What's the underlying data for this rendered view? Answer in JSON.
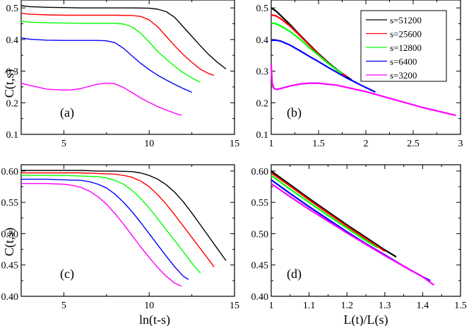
{
  "chart_data": [
    {
      "type": "line",
      "panel": "a",
      "panel_label": "(a)",
      "xlabel": "",
      "ylabel": "C(t,s)",
      "xlim": [
        2.5,
        15
      ],
      "ylim": [
        0.1,
        0.525
      ],
      "xticks": [
        5,
        10,
        15
      ],
      "xtick_labels": [
        "5",
        "10",
        "15"
      ],
      "yticks": [
        0.1,
        0.2,
        0.3,
        0.4,
        0.5
      ],
      "ytick_labels": [
        "0.1",
        "0.2",
        "0.3",
        "0.4",
        "0.5"
      ],
      "series": [
        {
          "name": "s=51200",
          "color": "#000000",
          "x": [
            2.5,
            3,
            4,
            5,
            6,
            7,
            8,
            9,
            10,
            10.5,
            11,
            11.5,
            12,
            12.5,
            13,
            13.5,
            14,
            14.5
          ],
          "y": [
            0.507,
            0.504,
            0.502,
            0.501,
            0.5,
            0.5,
            0.5,
            0.5,
            0.499,
            0.496,
            0.488,
            0.47,
            0.44,
            0.41,
            0.38,
            0.352,
            0.328,
            0.307
          ]
        },
        {
          "name": "s=25600",
          "color": "#ff0000",
          "x": [
            2.5,
            3,
            4,
            5,
            6,
            7,
            8,
            9,
            9.5,
            10,
            10.5,
            11,
            11.5,
            12,
            12.5,
            13,
            13.5,
            13.8
          ],
          "y": [
            0.483,
            0.48,
            0.478,
            0.477,
            0.477,
            0.477,
            0.477,
            0.476,
            0.473,
            0.462,
            0.44,
            0.41,
            0.38,
            0.352,
            0.328,
            0.306,
            0.292,
            0.287
          ]
        },
        {
          "name": "s=12800",
          "color": "#00ff00",
          "x": [
            2.5,
            3,
            4,
            5,
            6,
            7,
            8,
            8.5,
            9,
            9.5,
            10,
            10.5,
            11,
            11.5,
            12,
            12.5,
            13
          ],
          "y": [
            0.458,
            0.455,
            0.453,
            0.452,
            0.451,
            0.451,
            0.451,
            0.449,
            0.44,
            0.42,
            0.392,
            0.362,
            0.338,
            0.315,
            0.295,
            0.278,
            0.265
          ]
        },
        {
          "name": "s=6400",
          "color": "#0000ff",
          "x": [
            2.5,
            3,
            4,
            5,
            6,
            7,
            7.5,
            8,
            8.5,
            9,
            9.5,
            10,
            10.5,
            11,
            11.5,
            12,
            12.5
          ],
          "y": [
            0.405,
            0.401,
            0.398,
            0.397,
            0.397,
            0.397,
            0.396,
            0.39,
            0.372,
            0.348,
            0.325,
            0.305,
            0.287,
            0.272,
            0.258,
            0.245,
            0.233
          ]
        },
        {
          "name": "s=3200",
          "color": "#ff00ff",
          "x": [
            2.5,
            3,
            4,
            5,
            5.5,
            6,
            6.5,
            7,
            7.5,
            8,
            8.5,
            9,
            9.5,
            10,
            10.5,
            11,
            11.5,
            11.9
          ],
          "y": [
            0.262,
            0.255,
            0.243,
            0.24,
            0.241,
            0.245,
            0.252,
            0.259,
            0.262,
            0.26,
            0.248,
            0.232,
            0.215,
            0.201,
            0.188,
            0.177,
            0.167,
            0.16
          ]
        }
      ]
    },
    {
      "type": "line",
      "panel": "b",
      "panel_label": "(b)",
      "xlabel": "",
      "ylabel": "",
      "xlim": [
        1,
        3
      ],
      "ylim": [
        0.1,
        0.525
      ],
      "xticks": [
        1,
        1.5,
        2,
        2.5,
        3
      ],
      "xtick_labels": [
        "1",
        "1.5",
        "2",
        "2.5",
        "3"
      ],
      "yticks": [
        0.1,
        0.2,
        0.3,
        0.4,
        0.5
      ],
      "ytick_labels": [
        "0.1",
        "0.2",
        "0.3",
        "0.4",
        "0.5"
      ],
      "legend": {
        "placement": "top-right",
        "entries": [
          "s=51200",
          "s=25600",
          "s=12800",
          "s=6400",
          "s=3200"
        ]
      },
      "series": [
        {
          "name": "s=51200",
          "color": "#000000",
          "x": [
            1.0,
            1.05,
            1.1,
            1.2,
            1.3,
            1.4,
            1.5,
            1.6,
            1.7,
            1.8,
            1.85
          ],
          "y": [
            0.5,
            0.49,
            0.476,
            0.447,
            0.415,
            0.385,
            0.355,
            0.328,
            0.303,
            0.282,
            0.272
          ]
        },
        {
          "name": "s=25600",
          "color": "#ff0000",
          "x": [
            1.0,
            1.05,
            1.1,
            1.2,
            1.3,
            1.4,
            1.5,
            1.6,
            1.7,
            1.8
          ],
          "y": [
            0.478,
            0.475,
            0.466,
            0.442,
            0.413,
            0.383,
            0.353,
            0.326,
            0.302,
            0.283
          ]
        },
        {
          "name": "s=12800",
          "color": "#00ff00",
          "x": [
            1.0,
            1.05,
            1.1,
            1.2,
            1.3,
            1.4,
            1.5,
            1.6,
            1.7,
            1.75
          ],
          "y": [
            0.452,
            0.45,
            0.443,
            0.425,
            0.402,
            0.375,
            0.35,
            0.325,
            0.302,
            0.292
          ]
        },
        {
          "name": "s=6400",
          "color": "#0000ff",
          "x": [
            1.0,
            1.05,
            1.1,
            1.2,
            1.3,
            1.4,
            1.5,
            1.6,
            1.7,
            1.8,
            1.9,
            2.0,
            2.1
          ],
          "y": [
            0.397,
            0.398,
            0.395,
            0.382,
            0.365,
            0.347,
            0.33,
            0.312,
            0.295,
            0.278,
            0.263,
            0.248,
            0.234
          ]
        },
        {
          "name": "s=3200",
          "color": "#ff00ff",
          "x": [
            1.0,
            1.01,
            1.03,
            1.06,
            1.1,
            1.2,
            1.3,
            1.4,
            1.5,
            1.7,
            2.0,
            2.3,
            2.6,
            2.95
          ],
          "y": [
            0.32,
            0.262,
            0.245,
            0.242,
            0.245,
            0.253,
            0.259,
            0.262,
            0.262,
            0.255,
            0.235,
            0.21,
            0.185,
            0.16
          ]
        }
      ]
    },
    {
      "type": "line",
      "panel": "c",
      "panel_label": "(c)",
      "xlabel": "ln(t-s)",
      "ylabel": "C(t,s)",
      "xlim": [
        2.5,
        15
      ],
      "ylim": [
        0.4,
        0.61
      ],
      "xticks": [
        5,
        10,
        15
      ],
      "xtick_labels": [
        "5",
        "10",
        "15"
      ],
      "yticks": [
        0.4,
        0.45,
        0.5,
        0.55,
        0.6
      ],
      "ytick_labels": [
        "0.40",
        "0.45",
        "0.50",
        "0.55",
        "0.60"
      ],
      "series": [
        {
          "name": "s=51200",
          "color": "#000000",
          "x": [
            2.5,
            3,
            4,
            5,
            6,
            7,
            8,
            9,
            9.5,
            10,
            10.5,
            11,
            11.5,
            12,
            12.5,
            13,
            13.5,
            14,
            14.5
          ],
          "y": [
            0.601,
            0.601,
            0.601,
            0.601,
            0.601,
            0.6,
            0.6,
            0.599,
            0.597,
            0.593,
            0.587,
            0.578,
            0.566,
            0.551,
            0.533,
            0.514,
            0.495,
            0.476,
            0.457
          ]
        },
        {
          "name": "s=25600",
          "color": "#ff0000",
          "x": [
            2.5,
            3,
            4,
            5,
            6,
            7,
            8,
            8.5,
            9,
            9.5,
            10,
            10.5,
            11,
            11.5,
            12,
            12.5,
            13,
            13.5,
            13.8
          ],
          "y": [
            0.597,
            0.597,
            0.597,
            0.597,
            0.597,
            0.596,
            0.595,
            0.593,
            0.59,
            0.584,
            0.575,
            0.562,
            0.547,
            0.53,
            0.512,
            0.494,
            0.476,
            0.458,
            0.447
          ]
        },
        {
          "name": "s=12800",
          "color": "#00ff00",
          "x": [
            2.5,
            3,
            4,
            5,
            6,
            7,
            7.5,
            8,
            8.5,
            9,
            9.5,
            10,
            10.5,
            11,
            11.5,
            12,
            12.5,
            13
          ],
          "y": [
            0.593,
            0.593,
            0.593,
            0.593,
            0.592,
            0.591,
            0.589,
            0.585,
            0.579,
            0.569,
            0.556,
            0.541,
            0.524,
            0.506,
            0.489,
            0.471,
            0.453,
            0.437
          ]
        },
        {
          "name": "s=6400",
          "color": "#0000ff",
          "x": [
            2.5,
            3,
            4,
            5,
            6,
            6.5,
            7,
            7.5,
            8,
            8.5,
            9,
            9.5,
            10,
            10.5,
            11,
            11.5,
            12,
            12.3
          ],
          "y": [
            0.587,
            0.587,
            0.587,
            0.586,
            0.585,
            0.583,
            0.579,
            0.573,
            0.563,
            0.55,
            0.535,
            0.518,
            0.5,
            0.482,
            0.464,
            0.447,
            0.432,
            0.427
          ]
        },
        {
          "name": "s=3200",
          "color": "#ff00ff",
          "x": [
            2.5,
            3,
            4,
            5,
            5.5,
            6,
            6.5,
            7,
            7.5,
            8,
            8.5,
            9,
            9.5,
            10,
            10.5,
            11,
            11.5,
            11.9
          ],
          "y": [
            0.58,
            0.58,
            0.58,
            0.579,
            0.577,
            0.574,
            0.568,
            0.559,
            0.547,
            0.532,
            0.515,
            0.497,
            0.479,
            0.462,
            0.446,
            0.432,
            0.421,
            0.416
          ]
        }
      ]
    },
    {
      "type": "line",
      "panel": "d",
      "panel_label": "(d)",
      "xlabel": "L(t)/L(s)",
      "ylabel": "",
      "xlim": [
        1,
        1.5
      ],
      "ylim": [
        0.4,
        0.61
      ],
      "xticks": [
        1,
        1.1,
        1.2,
        1.3,
        1.4,
        1.5
      ],
      "xtick_labels": [
        "1",
        "1.1",
        "1.2",
        "1.3",
        "1.4",
        "1.5"
      ],
      "yticks": [
        0.4,
        0.45,
        0.5,
        0.55,
        0.6
      ],
      "ytick_labels": [
        "0.40",
        "0.45",
        "0.50",
        "0.55",
        "0.60"
      ],
      "series": [
        {
          "name": "s=51200",
          "color": "#000000",
          "x": [
            1.0,
            1.05,
            1.1,
            1.15,
            1.2,
            1.25,
            1.3,
            1.33
          ],
          "y": [
            0.6,
            0.578,
            0.556,
            0.535,
            0.514,
            0.494,
            0.474,
            0.463
          ]
        },
        {
          "name": "s=25600",
          "color": "#ff0000",
          "x": [
            1.0,
            1.05,
            1.1,
            1.15,
            1.2,
            1.25,
            1.3
          ],
          "y": [
            0.597,
            0.576,
            0.554,
            0.533,
            0.512,
            0.492,
            0.472
          ]
        },
        {
          "name": "s=12800",
          "color": "#00ff00",
          "x": [
            1.0,
            1.05,
            1.1,
            1.15,
            1.2,
            1.25,
            1.28
          ],
          "y": [
            0.593,
            0.571,
            0.55,
            0.529,
            0.509,
            0.489,
            0.478
          ]
        },
        {
          "name": "s=6400",
          "color": "#0000ff",
          "x": [
            1.0,
            1.05,
            1.1,
            1.15,
            1.2,
            1.25,
            1.3,
            1.35,
            1.4,
            1.42
          ],
          "y": [
            0.586,
            0.564,
            0.543,
            0.523,
            0.503,
            0.484,
            0.466,
            0.448,
            0.431,
            0.425
          ]
        },
        {
          "name": "s=3200",
          "color": "#ff00ff",
          "x": [
            1.0,
            1.05,
            1.1,
            1.15,
            1.2,
            1.25,
            1.3,
            1.35,
            1.4,
            1.43
          ],
          "y": [
            0.58,
            0.559,
            0.539,
            0.52,
            0.501,
            0.483,
            0.465,
            0.448,
            0.431,
            0.418
          ]
        }
      ]
    }
  ]
}
